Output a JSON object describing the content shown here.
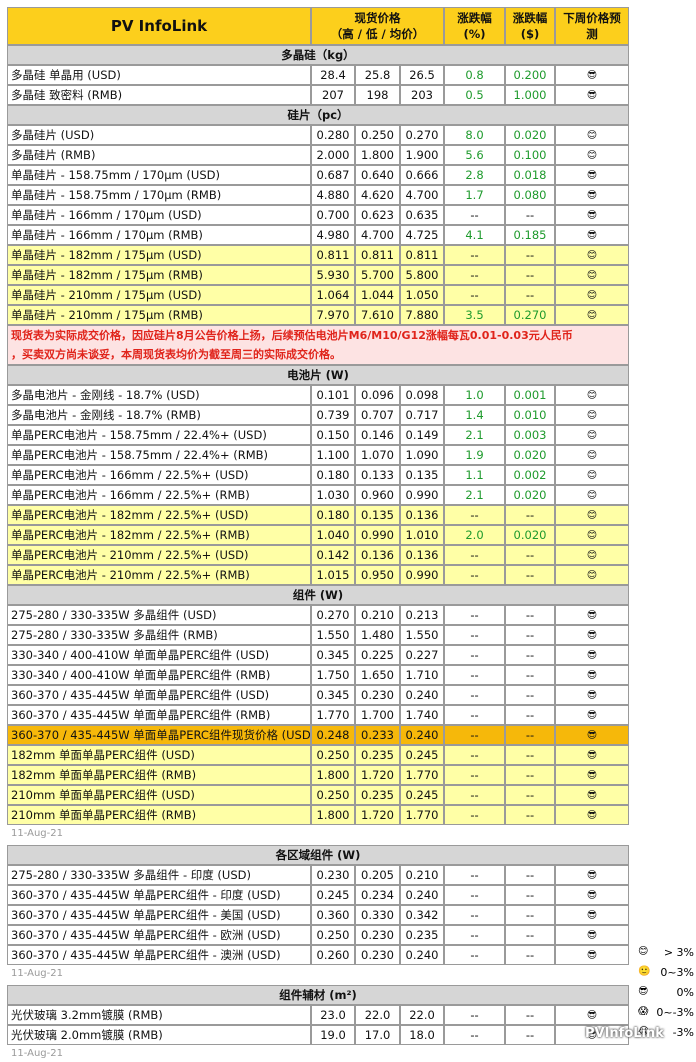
{
  "header": {
    "logo": "PV InfoLink",
    "price": [
      "现货价格",
      "（高 / 低 / 均价）"
    ],
    "pct": [
      "涨跌幅",
      "(%)"
    ],
    "usd": [
      "涨跌幅",
      "($)"
    ],
    "forecast": [
      "下周价格预",
      "测"
    ]
  },
  "tables": [
    {
      "sections": [
        {
          "title": "多晶硅（kg）",
          "rows": [
            {
              "c": [
                "多晶硅 单晶用 (USD)",
                "28.4",
                "25.8",
                "26.5",
                "0.8",
                "0.200",
                "😎"
              ]
            },
            {
              "c": [
                "多晶硅 致密料 (RMB)",
                "207",
                "198",
                "203",
                "0.5",
                "1.000",
                "😎"
              ]
            }
          ]
        },
        {
          "title": "硅片（pc）",
          "rows": [
            {
              "c": [
                "多晶硅片 (USD)",
                "0.280",
                "0.250",
                "0.270",
                "8.0",
                "0.020",
                "😊"
              ]
            },
            {
              "c": [
                "多晶硅片 (RMB)",
                "2.000",
                "1.800",
                "1.900",
                "5.6",
                "0.100",
                "😊"
              ]
            },
            {
              "c": [
                "单晶硅片 - 158.75mm / 170μm (USD)",
                "0.687",
                "0.640",
                "0.666",
                "2.8",
                "0.018",
                "😎"
              ]
            },
            {
              "c": [
                "单晶硅片 - 158.75mm / 170μm (RMB)",
                "4.880",
                "4.620",
                "4.700",
                "1.7",
                "0.080",
                "😎"
              ]
            },
            {
              "c": [
                "单晶硅片 - 166mm / 170μm (USD)",
                "0.700",
                "0.623",
                "0.635",
                "--",
                "--",
                "😎"
              ]
            },
            {
              "c": [
                "单晶硅片 - 166mm / 170μm (RMB)",
                "4.980",
                "4.700",
                "4.725",
                "4.1",
                "0.185",
                "😎"
              ]
            },
            {
              "c": [
                "单晶硅片 - 182mm / 175μm (USD)",
                "0.811",
                "0.811",
                "0.811",
                "--",
                "--",
                "😊"
              ],
              "hl": "#ffffa6"
            },
            {
              "c": [
                "单晶硅片 - 182mm / 175μm (RMB)",
                "5.930",
                "5.700",
                "5.800",
                "--",
                "--",
                "😊"
              ],
              "hl": "#ffffa6"
            },
            {
              "c": [
                "单晶硅片 - 210mm / 175μm (USD)",
                "1.064",
                "1.044",
                "1.050",
                "--",
                "--",
                "😊"
              ],
              "hl": "#ffffa6"
            },
            {
              "c": [
                "单晶硅片 - 210mm / 175μm (RMB)",
                "7.970",
                "7.610",
                "7.880",
                "3.5",
                "0.270",
                "😊"
              ],
              "hl": "#ffffa6"
            }
          ],
          "note": [
            "现货表为实际成交价格，因应硅片8月公告价格上扬，后续预估电池片M6/M10/G12涨幅每瓦0.01-0.03元人民币",
            "，买卖双方尚未谈妥，本周现货表均价为截至周三的实际成交价格。"
          ]
        },
        {
          "title": "电池片 (W)",
          "rows": [
            {
              "c": [
                "多晶电池片 - 金刚线 - 18.7% (USD)",
                "0.101",
                "0.096",
                "0.098",
                "1.0",
                "0.001",
                "😊"
              ]
            },
            {
              "c": [
                "多晶电池片 - 金刚线 - 18.7% (RMB)",
                "0.739",
                "0.707",
                "0.717",
                "1.4",
                "0.010",
                "😊"
              ]
            },
            {
              "c": [
                "单晶PERC电池片 - 158.75mm / 22.4%+ (USD)",
                "0.150",
                "0.146",
                "0.149",
                "2.1",
                "0.003",
                "😊"
              ]
            },
            {
              "c": [
                "单晶PERC电池片 - 158.75mm / 22.4%+ (RMB)",
                "1.100",
                "1.070",
                "1.090",
                "1.9",
                "0.020",
                "😊"
              ]
            },
            {
              "c": [
                "单晶PERC电池片 - 166mm / 22.5%+ (USD)",
                "0.180",
                "0.133",
                "0.135",
                "1.1",
                "0.002",
                "😊"
              ]
            },
            {
              "c": [
                "单晶PERC电池片 - 166mm / 22.5%+ (RMB)",
                "1.030",
                "0.960",
                "0.990",
                "2.1",
                "0.020",
                "😊"
              ]
            },
            {
              "c": [
                "单晶PERC电池片 - 182mm / 22.5%+ (USD)",
                "0.180",
                "0.135",
                "0.136",
                "--",
                "--",
                "😊"
              ],
              "hl": "#ffffa6"
            },
            {
              "c": [
                "单晶PERC电池片 - 182mm / 22.5%+ (RMB)",
                "1.040",
                "0.990",
                "1.010",
                "2.0",
                "0.020",
                "😊"
              ],
              "hl": "#ffffa6"
            },
            {
              "c": [
                "单晶PERC电池片 - 210mm / 22.5%+ (USD)",
                "0.142",
                "0.136",
                "0.136",
                "--",
                "--",
                "😊"
              ],
              "hl": "#ffffa6"
            },
            {
              "c": [
                "单晶PERC电池片 - 210mm / 22.5%+ (RMB)",
                "1.015",
                "0.950",
                "0.990",
                "--",
                "--",
                "😊"
              ],
              "hl": "#ffffa6"
            }
          ]
        },
        {
          "title": "组件 (W)",
          "rows": [
            {
              "c": [
                "275-280 / 330-335W 多晶组件 (USD)",
                "0.270",
                "0.210",
                "0.213",
                "--",
                "--",
                "😎"
              ]
            },
            {
              "c": [
                "275-280 / 330-335W 多晶组件 (RMB)",
                "1.550",
                "1.480",
                "1.550",
                "--",
                "--",
                "😎"
              ]
            },
            {
              "c": [
                "330-340 / 400-410W 单面单晶PERC组件 (USD)",
                "0.345",
                "0.225",
                "0.227",
                "--",
                "--",
                "😎"
              ]
            },
            {
              "c": [
                "330-340 / 400-410W 单面单晶PERC组件 (RMB)",
                "1.750",
                "1.650",
                "1.710",
                "--",
                "--",
                "😎"
              ]
            },
            {
              "c": [
                "360-370 / 435-445W 单面单晶PERC组件 (USD)",
                "0.345",
                "0.230",
                "0.240",
                "--",
                "--",
                "😎"
              ]
            },
            {
              "c": [
                "360-370 / 435-445W 单面单晶PERC组件 (RMB)",
                "1.770",
                "1.700",
                "1.740",
                "--",
                "--",
                "😎"
              ]
            },
            {
              "c": [
                "360-370 / 435-445W 单面单晶PERC组件现货价格 (USD)",
                "0.248",
                "0.233",
                "0.240",
                "--",
                "--",
                "😎"
              ],
              "hl": "#f6b80a"
            },
            {
              "c": [
                "182mm 单面单晶PERC组件 (USD)",
                "0.250",
                "0.235",
                "0.245",
                "--",
                "--",
                "😎"
              ],
              "hl": "#ffffa6"
            },
            {
              "c": [
                "182mm 单面单晶PERC组件 (RMB)",
                "1.800",
                "1.720",
                "1.770",
                "--",
                "--",
                "😎"
              ],
              "hl": "#ffffa6"
            },
            {
              "c": [
                "210mm 单面单晶PERC组件 (USD)",
                "0.250",
                "0.235",
                "0.245",
                "--",
                "--",
                "😎"
              ],
              "hl": "#ffffa6"
            },
            {
              "c": [
                "210mm 单面单晶PERC组件 (RMB)",
                "1.800",
                "1.720",
                "1.770",
                "--",
                "--",
                "😎"
              ],
              "hl": "#ffffa6"
            }
          ]
        }
      ],
      "date": "11-Aug-21"
    },
    {
      "sections": [
        {
          "title": "各区域组件 (W)",
          "rows": [
            {
              "c": [
                "275-280 / 330-335W 多晶组件 - 印度 (USD)",
                "0.230",
                "0.205",
                "0.210",
                "--",
                "--",
                "😎"
              ]
            },
            {
              "c": [
                "360-370 / 435-445W 单晶PERC组件 - 印度 (USD)",
                "0.245",
                "0.234",
                "0.240",
                "--",
                "--",
                "😎"
              ]
            },
            {
              "c": [
                "360-370 / 435-445W 单晶PERC组件 - 美国 (USD)",
                "0.360",
                "0.330",
                "0.342",
                "--",
                "--",
                "😎"
              ]
            },
            {
              "c": [
                "360-370 / 435-445W 单晶PERC组件 - 欧洲 (USD)",
                "0.250",
                "0.230",
                "0.235",
                "--",
                "--",
                "😎"
              ]
            },
            {
              "c": [
                "360-370 / 435-445W 单晶PERC组件 - 澳洲 (USD)",
                "0.260",
                "0.230",
                "0.240",
                "--",
                "--",
                "😎"
              ]
            }
          ]
        }
      ],
      "date": "11-Aug-21"
    },
    {
      "sections": [
        {
          "title": "组件辅材 (m²)",
          "rows": [
            {
              "c": [
                "光伏玻璃 3.2mm镀膜 (RMB)",
                "23.0",
                "22.0",
                "22.0",
                "--",
                "--",
                "😎"
              ]
            },
            {
              "c": [
                "光伏玻璃 2.0mm镀膜 (RMB)",
                "19.0",
                "17.0",
                "18.0",
                "--",
                "--",
                "😎"
              ]
            }
          ]
        }
      ],
      "date": "11-Aug-21"
    }
  ],
  "legend": [
    {
      "icon": "😊",
      "label": "> 3%"
    },
    {
      "icon": "🙂",
      "label": "0~3%"
    },
    {
      "icon": "😎",
      "label": "0%"
    },
    {
      "icon": "😱",
      "label": "0~-3%"
    },
    {
      "icon": "😭",
      "label": "-3%"
    }
  ],
  "watermark": "PVInfoLink"
}
